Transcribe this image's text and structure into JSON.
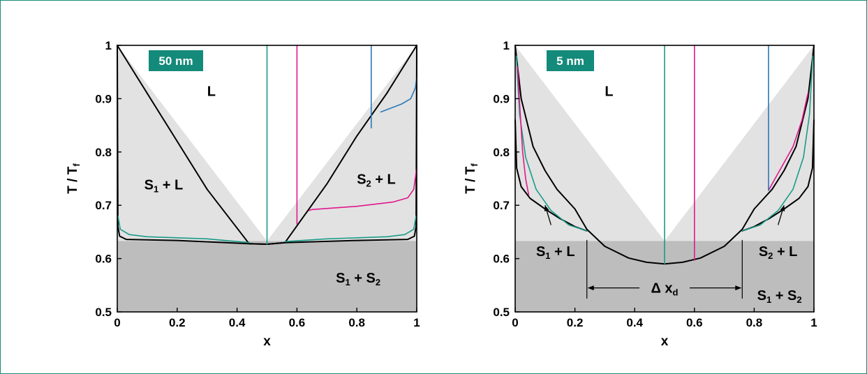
{
  "colors": {
    "teal": "#1a9a88",
    "magenta": "#e0188c",
    "blue": "#2a78b8",
    "black": "#000000",
    "light_gray": "#e2e2e2",
    "dark_gray": "#bdbdbd",
    "badge": "#148a7a",
    "frame": "#1a8a78"
  },
  "chart_data": [
    {
      "type": "line",
      "title": "50 nm",
      "xlabel": "x",
      "ylabel": "T / T",
      "ylabel_sub": "f",
      "xlim": [
        0,
        1
      ],
      "ylim": [
        0.5,
        1
      ],
      "xticks": [
        "0",
        "0.2",
        "0.4",
        "0.6",
        "0.8",
        "1"
      ],
      "yticks": [
        "0.5",
        "0.6",
        "0.7",
        "0.8",
        "0.9",
        "1"
      ],
      "eutectic_T": 0.633,
      "bulk_liquidus": {
        "x": [
          0,
          0.5,
          1
        ],
        "y": [
          1,
          0.633,
          1
        ]
      },
      "labels": [
        {
          "text": "L",
          "sub": "",
          "tail": "",
          "x": 0.3,
          "y": 0.905
        },
        {
          "text": "S",
          "sub": "1",
          "tail": " + L",
          "x": 0.09,
          "y": 0.73
        },
        {
          "text": "S",
          "sub": "2",
          "tail": " + L",
          "x": 0.8,
          "y": 0.74
        },
        {
          "text": "S",
          "sub": "1",
          "tail": " + S",
          "sub2": "2",
          "x": 0.73,
          "y": 0.555
        }
      ],
      "series": [
        {
          "color": "black",
          "points": [
            [
              0,
              1
            ],
            [
              0.1,
              0.91
            ],
            [
              0.2,
              0.82
            ],
            [
              0.3,
              0.73
            ],
            [
              0.44,
              0.628
            ],
            [
              0.5,
              0.627
            ],
            [
              0.56,
              0.63
            ],
            [
              0.7,
              0.74
            ],
            [
              0.8,
              0.83
            ],
            [
              0.9,
              0.91
            ],
            [
              1,
              1
            ]
          ]
        },
        {
          "color": "black",
          "points": [
            [
              0,
              1
            ],
            [
              0.002,
              0.66
            ],
            [
              0.008,
              0.642
            ],
            [
              0.03,
              0.636
            ],
            [
              0.2,
              0.634
            ],
            [
              0.44,
              0.628
            ],
            [
              0.5,
              0.627
            ],
            [
              0.56,
              0.63
            ],
            [
              0.8,
              0.634
            ],
            [
              0.97,
              0.636
            ],
            [
              0.992,
              0.642
            ],
            [
              0.998,
              0.66
            ],
            [
              1,
              1
            ]
          ]
        },
        {
          "color": "teal",
          "points": [
            [
              0.002,
              0.68
            ],
            [
              0.01,
              0.655
            ],
            [
              0.04,
              0.645
            ],
            [
              0.1,
              0.641
            ],
            [
              0.3,
              0.637
            ],
            [
              0.44,
              0.63
            ]
          ]
        },
        {
          "color": "teal",
          "points": [
            [
              0.56,
              0.632
            ],
            [
              0.7,
              0.637
            ],
            [
              0.9,
              0.641
            ],
            [
              0.96,
              0.645
            ],
            [
              0.99,
              0.655
            ],
            [
              0.998,
              0.68
            ]
          ]
        },
        {
          "color": "teal",
          "points": [
            [
              0.5,
              0.627
            ],
            [
              0.5,
              1
            ]
          ]
        },
        {
          "color": "magenta",
          "points": [
            [
              0.6,
              1
            ],
            [
              0.6,
              0.665
            ]
          ]
        },
        {
          "color": "magenta",
          "points": [
            [
              0.64,
              0.69
            ],
            [
              0.65,
              0.692
            ],
            [
              0.8,
              0.698
            ],
            [
              0.92,
              0.706
            ],
            [
              0.97,
              0.714
            ],
            [
              0.99,
              0.73
            ],
            [
              1,
              0.77
            ]
          ]
        },
        {
          "color": "blue",
          "points": [
            [
              0.848,
              1
            ],
            [
              0.848,
              0.845
            ]
          ]
        },
        {
          "color": "blue",
          "points": [
            [
              0.88,
              0.875
            ],
            [
              0.95,
              0.89
            ],
            [
              0.98,
              0.9
            ],
            [
              0.995,
              0.92
            ],
            [
              1,
              0.94
            ]
          ]
        }
      ],
      "arrows": [],
      "dimension": null
    },
    {
      "type": "line",
      "title": "5 nm",
      "xlabel": "x",
      "ylabel": "T / T",
      "ylabel_sub": "f",
      "xlim": [
        0,
        1
      ],
      "ylim": [
        0.5,
        1
      ],
      "xticks": [
        "0",
        "0.2",
        "0.4",
        "0.6",
        "0.8",
        "1"
      ],
      "yticks": [
        "0.5",
        "0.6",
        "0.7",
        "0.8",
        "0.9",
        "1"
      ],
      "eutectic_T": 0.633,
      "bulk_liquidus": {
        "x": [
          0,
          0.5,
          1
        ],
        "y": [
          1,
          0.633,
          1
        ]
      },
      "labels": [
        {
          "text": "L",
          "sub": "",
          "tail": "",
          "x": 0.3,
          "y": 0.905
        },
        {
          "text": "S",
          "sub": "1",
          "tail": " + L",
          "x": 0.07,
          "y": 0.605
        },
        {
          "text": "S",
          "sub": "2",
          "tail": " + L",
          "x": 0.815,
          "y": 0.605
        },
        {
          "text": "S",
          "sub": "1",
          "tail": " + S",
          "sub2": "2",
          "x": 0.81,
          "y": 0.522
        }
      ],
      "series": [
        {
          "color": "black",
          "points": [
            [
              0,
              1
            ],
            [
              0.02,
              0.9
            ],
            [
              0.06,
              0.81
            ],
            [
              0.1,
              0.765
            ],
            [
              0.14,
              0.73
            ],
            [
              0.2,
              0.693
            ],
            [
              0.24,
              0.655
            ],
            [
              0.3,
              0.623
            ],
            [
              0.38,
              0.601
            ],
            [
              0.44,
              0.593
            ],
            [
              0.5,
              0.59
            ],
            [
              0.56,
              0.593
            ],
            [
              0.62,
              0.601
            ],
            [
              0.7,
              0.623
            ],
            [
              0.76,
              0.655
            ],
            [
              0.8,
              0.693
            ],
            [
              0.86,
              0.73
            ],
            [
              0.9,
              0.765
            ],
            [
              0.94,
              0.81
            ],
            [
              0.98,
              0.9
            ],
            [
              1,
              1
            ]
          ]
        },
        {
          "color": "black",
          "points": [
            [
              0,
              0.86
            ],
            [
              0.005,
              0.77
            ],
            [
              0.02,
              0.735
            ],
            [
              0.05,
              0.713
            ],
            [
              0.1,
              0.693
            ],
            [
              0.15,
              0.675
            ],
            [
              0.2,
              0.66
            ],
            [
              0.24,
              0.652
            ]
          ]
        },
        {
          "color": "black",
          "points": [
            [
              0.76,
              0.652
            ],
            [
              0.8,
              0.66
            ],
            [
              0.85,
              0.675
            ],
            [
              0.9,
              0.693
            ],
            [
              0.95,
              0.713
            ],
            [
              0.98,
              0.735
            ],
            [
              0.995,
              0.77
            ],
            [
              1,
              0.86
            ]
          ]
        },
        {
          "color": "teal",
          "points": [
            [
              0.004,
              0.98
            ],
            [
              0.015,
              0.87
            ],
            [
              0.035,
              0.79
            ],
            [
              0.07,
              0.73
            ],
            [
              0.12,
              0.69
            ],
            [
              0.18,
              0.663
            ],
            [
              0.24,
              0.652
            ]
          ]
        },
        {
          "color": "teal",
          "points": [
            [
              0.76,
              0.652
            ],
            [
              0.82,
              0.663
            ],
            [
              0.88,
              0.69
            ],
            [
              0.93,
              0.73
            ],
            [
              0.965,
              0.79
            ],
            [
              0.985,
              0.87
            ],
            [
              0.996,
              0.98
            ]
          ]
        },
        {
          "color": "teal",
          "points": [
            [
              0.5,
              0.59
            ],
            [
              0.5,
              1
            ]
          ]
        },
        {
          "color": "magenta",
          "points": [
            [
              0.008,
              0.96
            ],
            [
              0.015,
              0.89
            ],
            [
              0.025,
              0.8
            ],
            [
              0.035,
              0.75
            ],
            [
              0.045,
              0.72
            ]
          ]
        },
        {
          "color": "magenta",
          "points": [
            [
              0.6,
              1
            ],
            [
              0.6,
              0.597
            ]
          ]
        },
        {
          "color": "magenta",
          "points": [
            [
              0.848,
              0.728
            ],
            [
              0.88,
              0.76
            ],
            [
              0.93,
              0.81
            ],
            [
              0.96,
              0.86
            ],
            [
              0.98,
              0.91
            ]
          ]
        },
        {
          "color": "blue",
          "points": [
            [
              0.848,
              1
            ],
            [
              0.848,
              0.728
            ]
          ]
        }
      ],
      "arrows": [
        {
          "from": [
            0.12,
            0.663
          ],
          "to": [
            0.1,
            0.7
          ]
        },
        {
          "from": [
            0.88,
            0.663
          ],
          "to": [
            0.9,
            0.7
          ]
        }
      ],
      "dimension": {
        "x1": 0.24,
        "x2": 0.76,
        "y_text": 0.545,
        "y_bottom": 0.525,
        "y_top": 0.635,
        "label": "Δ x",
        "label_sub": "d"
      }
    }
  ]
}
